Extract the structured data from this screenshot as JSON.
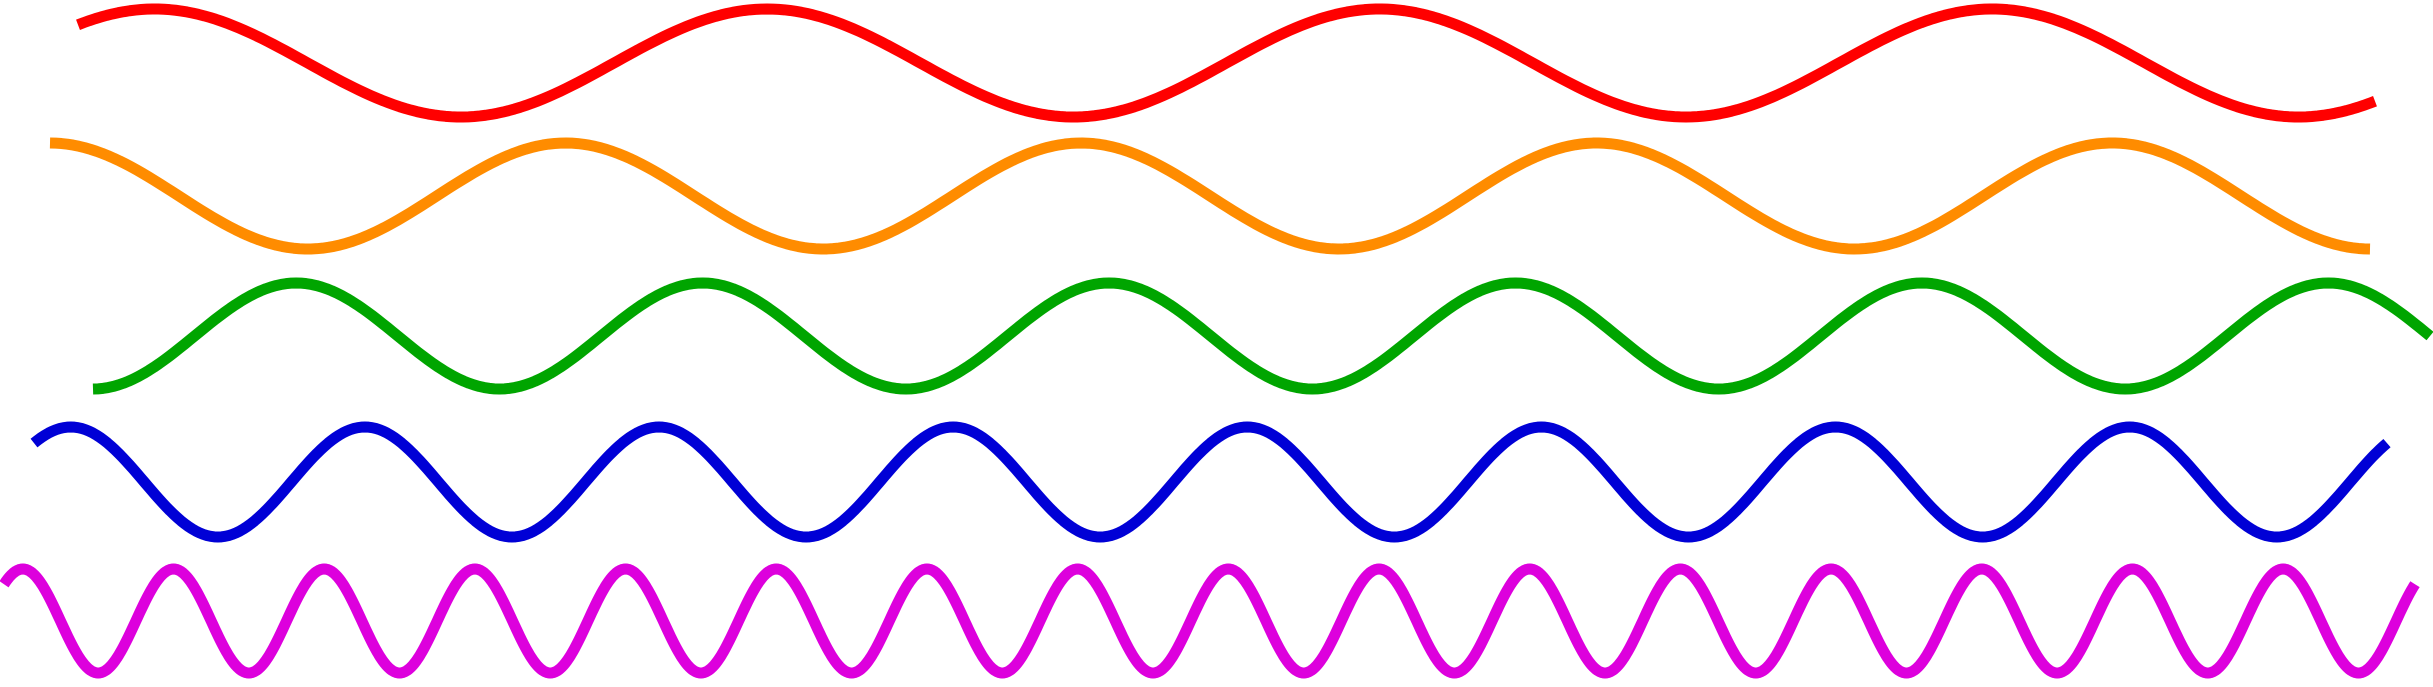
{
  "waves": [
    {
      "id": "red",
      "color": "#ff0000",
      "cycles": 3.75,
      "phase": "descending"
    },
    {
      "id": "orange",
      "color": "#ff8c00",
      "cycles": 4.5,
      "phase": "peak"
    },
    {
      "id": "green",
      "color": "#00a500",
      "cycles": 5.75,
      "phase": "trough"
    },
    {
      "id": "blue",
      "color": "#0000d6",
      "cycles": 8,
      "phase": "descending"
    },
    {
      "id": "magenta",
      "color": "#dd00dd",
      "cycles": 16,
      "phase": "descending"
    }
  ]
}
